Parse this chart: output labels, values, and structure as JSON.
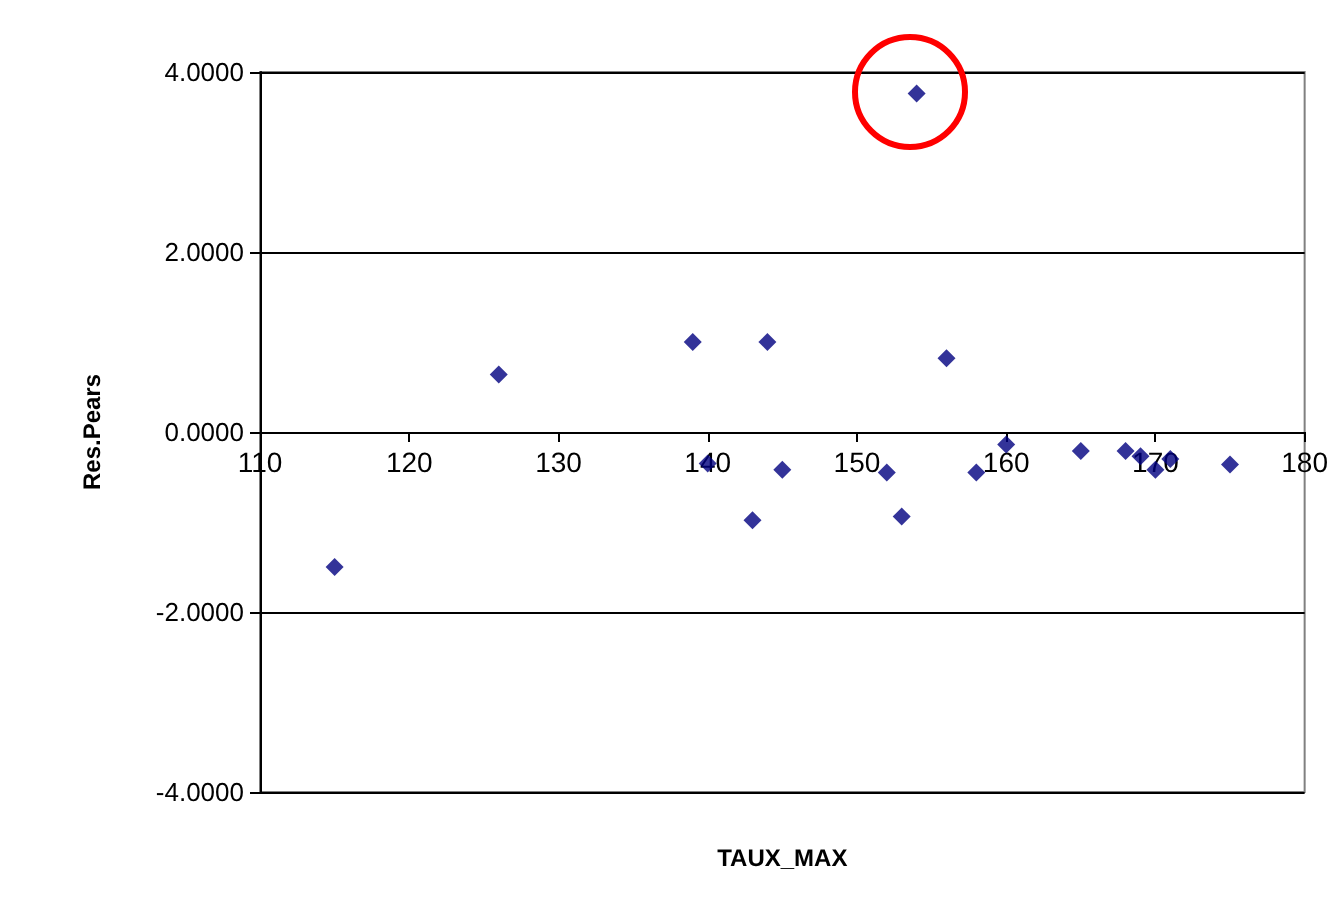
{
  "chart_data": {
    "type": "scatter",
    "xlabel": "TAUX_MAX",
    "ylabel": "Res.Pears",
    "x": [
      115,
      126,
      139,
      144,
      140,
      143,
      145,
      152,
      153,
      154,
      156,
      158,
      160,
      165,
      168,
      169,
      170,
      171,
      175
    ],
    "series": [
      {
        "color": "#000080",
        "values": [
          -1.5,
          0.64,
          1.0,
          1.0,
          -0.35,
          -0.98,
          -0.42,
          -0.45,
          -0.94,
          3.76,
          0.82,
          -0.45,
          -0.14,
          -0.21,
          -0.21,
          -0.27,
          -0.42,
          -0.3,
          -0.36
        ]
      }
    ],
    "xlim": [
      110,
      180
    ],
    "xticks": [
      110,
      120,
      130,
      140,
      150,
      160,
      170,
      180
    ],
    "ylim": [
      -4,
      4
    ],
    "yticks": [
      {
        "value": -4,
        "label": "-4.0000"
      },
      {
        "value": -2,
        "label": "-2.0000"
      },
      {
        "value": 0,
        "label": "0.0000"
      },
      {
        "value": 2,
        "label": "2.0000"
      },
      {
        "value": 4,
        "label": "4.0000"
      }
    ],
    "grid": "y",
    "marker": "diamond"
  }
}
